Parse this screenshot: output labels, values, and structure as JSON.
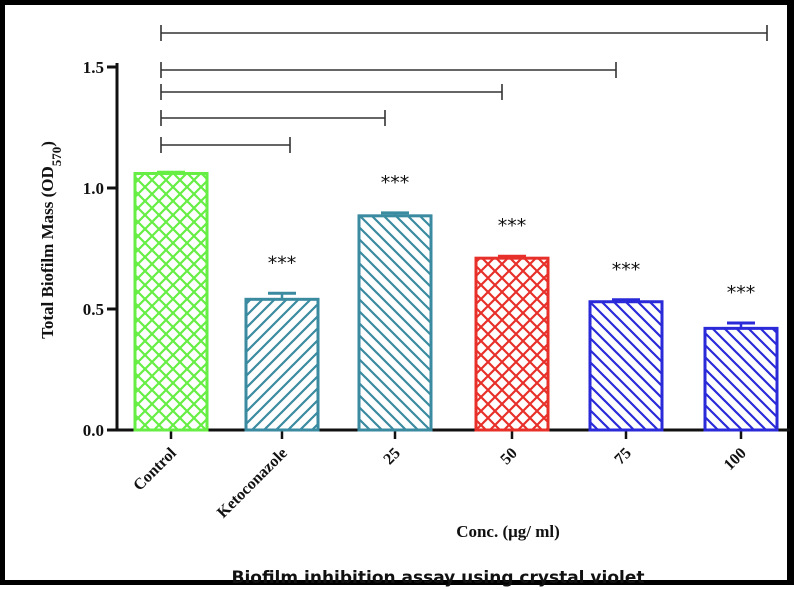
{
  "chart_data": {
    "type": "bar",
    "categories": [
      "Control",
      "Ketoconazole",
      "25",
      "50",
      "75",
      "100"
    ],
    "values": [
      1.06,
      0.54,
      0.885,
      0.71,
      0.53,
      0.42
    ],
    "errors": [
      0.005,
      0.025,
      0.012,
      0.008,
      0.008,
      0.022
    ],
    "colors": [
      "#66ee44",
      "#3a8aa0",
      "#3a8aa0",
      "#e8302a",
      "#2a2ad8",
      "#2a2ad8"
    ],
    "patterns": [
      "crosshatch",
      "diagonal",
      "diagonal",
      "crosshatch",
      "diagonal",
      "diagonal"
    ],
    "significance": [
      "",
      "***",
      "***",
      "***",
      "***",
      "***"
    ],
    "comparison_brackets": [
      {
        "from": "Control",
        "to": "100"
      },
      {
        "from": "Control",
        "to": "75"
      },
      {
        "from": "Control",
        "to": "50"
      },
      {
        "from": "Control",
        "to": "25"
      },
      {
        "from": "Control",
        "to": "Ketoconazole"
      }
    ],
    "yticks": [
      "0.0",
      "0.5",
      "1.0",
      "1.5"
    ],
    "ytick_values": [
      0.0,
      0.5,
      1.0,
      1.5
    ],
    "ylim": [
      0,
      1.5
    ],
    "ylabel": "Total Biofilm Mass (OD",
    "ylabel_sub": "570",
    "ylabel_end": ")",
    "xlabel": "Conc. (μg/ ml)",
    "caption": "Biofilm inhibition assay using crystal violet"
  }
}
